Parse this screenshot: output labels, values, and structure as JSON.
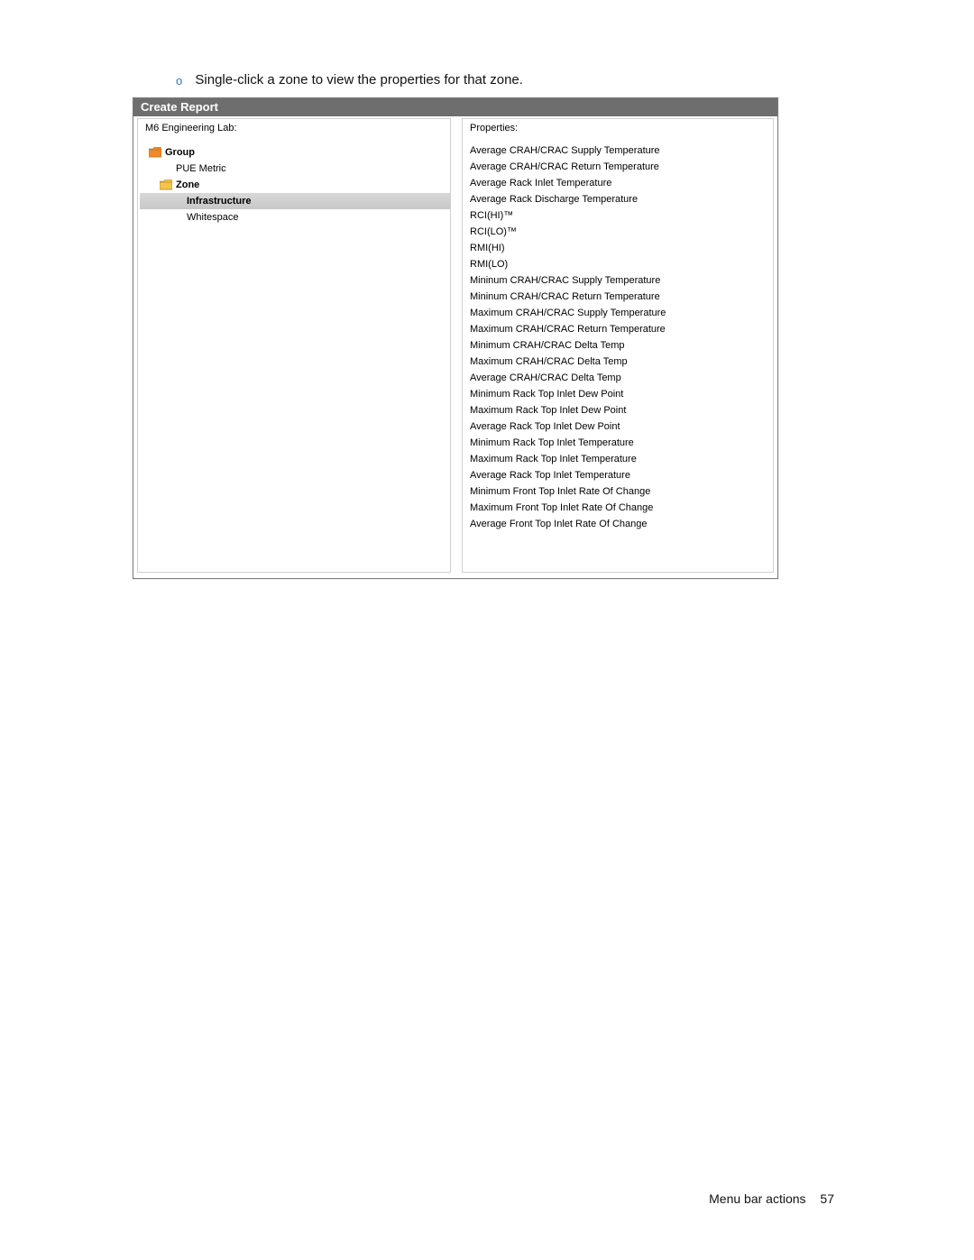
{
  "bullet": {
    "marker": "o",
    "text": "Single-click a zone to view the properties for that zone."
  },
  "dialog": {
    "title": "Create Report",
    "left_header": "M6 Engineering Lab:",
    "right_header": "Properties:",
    "tree": [
      {
        "label": "Group",
        "indent": "indent-1",
        "bold": true,
        "icon": "folder-orange",
        "selected": false
      },
      {
        "label": "PUE Metric",
        "indent": "indent-2",
        "bold": false,
        "icon": "none",
        "selected": false
      },
      {
        "label": "Zone",
        "indent": "indent-3",
        "bold": true,
        "icon": "folder-yellow",
        "selected": false
      },
      {
        "label": "Infrastructure",
        "indent": "indent-4",
        "bold": true,
        "icon": "none",
        "selected": true
      },
      {
        "label": "Whitespace",
        "indent": "indent-4",
        "bold": false,
        "icon": "none",
        "selected": false
      }
    ],
    "properties": [
      "Average CRAH/CRAC Supply Temperature",
      "Average CRAH/CRAC Return Temperature",
      "Average Rack Inlet Temperature",
      "Average Rack Discharge Temperature",
      "RCI(HI)™",
      "RCI(LO)™",
      "RMI(HI)",
      "RMI(LO)",
      "Mininum CRAH/CRAC Supply Temperature",
      "Mininum CRAH/CRAC Return Temperature",
      "Maximum CRAH/CRAC Supply Temperature",
      "Maximum CRAH/CRAC Return Temperature",
      "Minimum CRAH/CRAC Delta Temp",
      "Maximum CRAH/CRAC Delta Temp",
      "Average CRAH/CRAC Delta Temp",
      "Minimum Rack Top Inlet Dew Point",
      "Maximum Rack Top Inlet Dew Point",
      "Average Rack Top Inlet Dew Point",
      "Minimum Rack Top Inlet Temperature",
      "Maximum Rack Top Inlet Temperature",
      "Average Rack Top Inlet Temperature",
      "Minimum Front Top Inlet Rate Of Change",
      "Maximum Front Top Inlet Rate Of Change",
      "Average Front Top Inlet Rate Of Change"
    ]
  },
  "footer": {
    "section": "Menu bar actions",
    "page": "57"
  },
  "colors": {
    "titlebar_bg": "#6e6e6e",
    "bullet_marker": "#2a77c0",
    "selected_row_bg": "#cfcfcf",
    "folder_orange": "#f08a2a",
    "folder_yellow": "#f3c54d"
  }
}
